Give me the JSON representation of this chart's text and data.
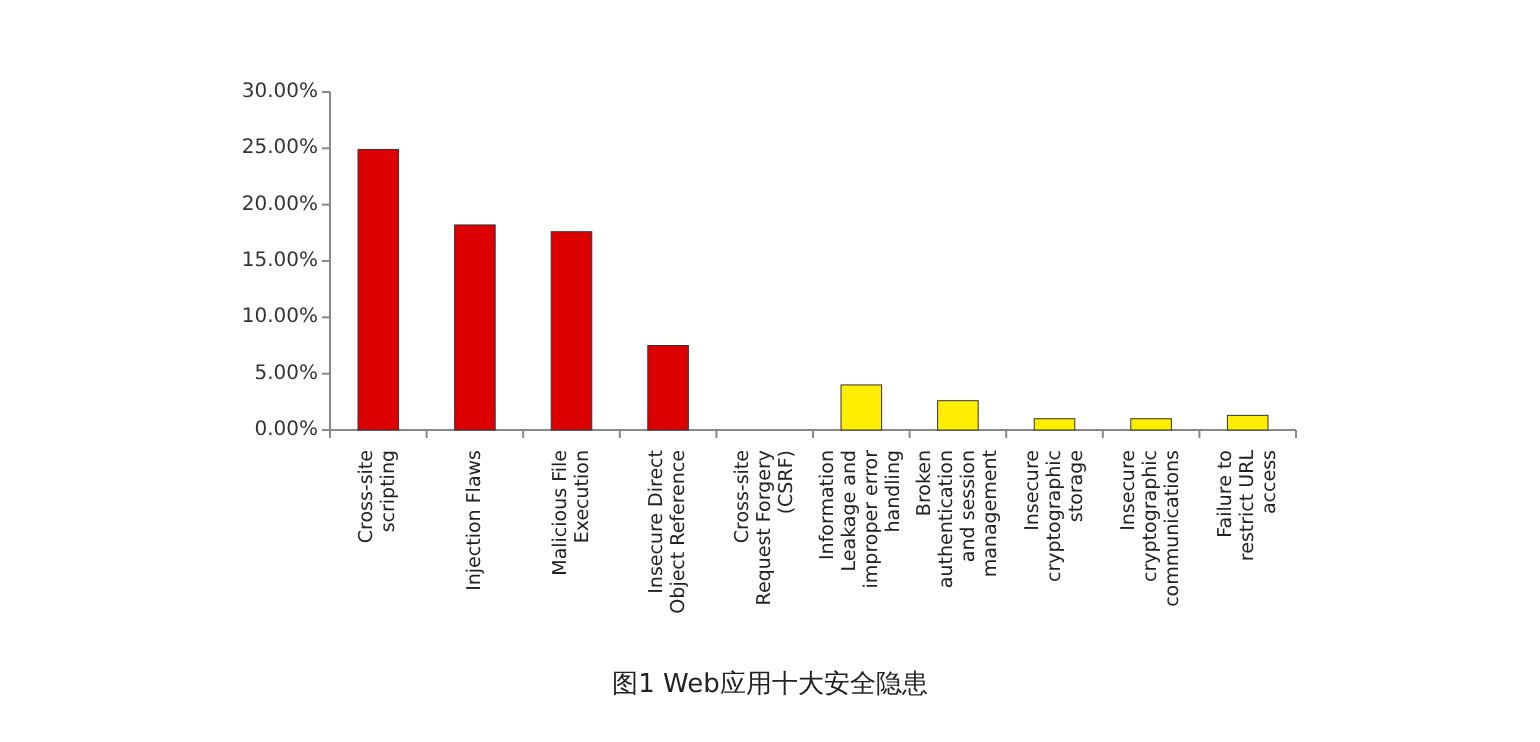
{
  "chart_data": {
    "type": "bar",
    "annotations": [
      "图1 Web应用十大安全隐患"
    ],
    "categories": [
      "Cross-site scripting",
      "Injection Flaws",
      "Malicious File Execution",
      "Insecure Direct Object Reference",
      "Cross-site Request Forgery (CSRF)",
      "Information Leakage and improper error handling",
      "Broken authentication and session management",
      "Insecure cryptographic storage",
      "Insecure cryptographic communications",
      "Failure to restrict URL access"
    ],
    "values": [
      24.9,
      18.2,
      17.6,
      7.5,
      0,
      4.0,
      2.6,
      1.0,
      1.0,
      1.3
    ],
    "colors": [
      "#dd0000",
      "#dd0000",
      "#dd0000",
      "#dd0000",
      "#dd0000",
      "#ffee00",
      "#ffee00",
      "#ffee00",
      "#ffee00",
      "#ffee00"
    ],
    "ylim": [
      0,
      30
    ],
    "yticks": [
      {
        "value": 0,
        "label": "0.00%"
      },
      {
        "value": 5,
        "label": "5.00%"
      },
      {
        "value": 10,
        "label": "10.00%"
      },
      {
        "value": 15,
        "label": "15.00%"
      },
      {
        "value": 20,
        "label": "20.00%"
      },
      {
        "value": 25,
        "label": "25.00%"
      },
      {
        "value": 30,
        "label": "30.00%"
      }
    ],
    "grid": false
  }
}
